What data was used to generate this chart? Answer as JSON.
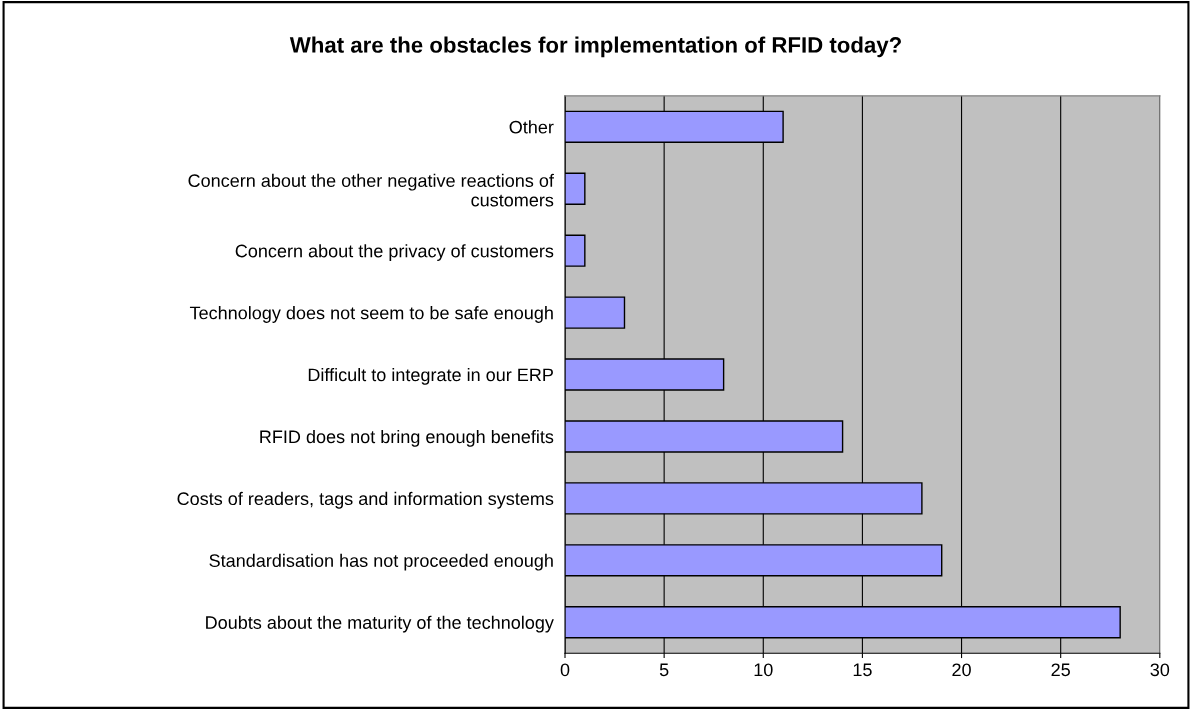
{
  "chart_data": {
    "type": "bar",
    "orientation": "horizontal",
    "title": "What are the obstacles for implementation of RFID today?",
    "categories": [
      "Other",
      "Concern about the other negative reactions of\ncustomers",
      "Concern about the privacy of customers",
      "Technology does not seem to be safe enough",
      "Difficult to integrate in our ERP",
      "RFID does not bring enough benefits",
      "Costs of readers, tags and information systems",
      "Standardisation has not proceeded enough",
      "Doubts about the maturity of the technology"
    ],
    "values": [
      11,
      1,
      1,
      3,
      8,
      14,
      18,
      19,
      28
    ],
    "color": "#9999ff",
    "xlim": [
      0,
      30
    ],
    "xticks": [
      0,
      5,
      10,
      15,
      20,
      25,
      30
    ],
    "grid": "x",
    "legend": false
  }
}
